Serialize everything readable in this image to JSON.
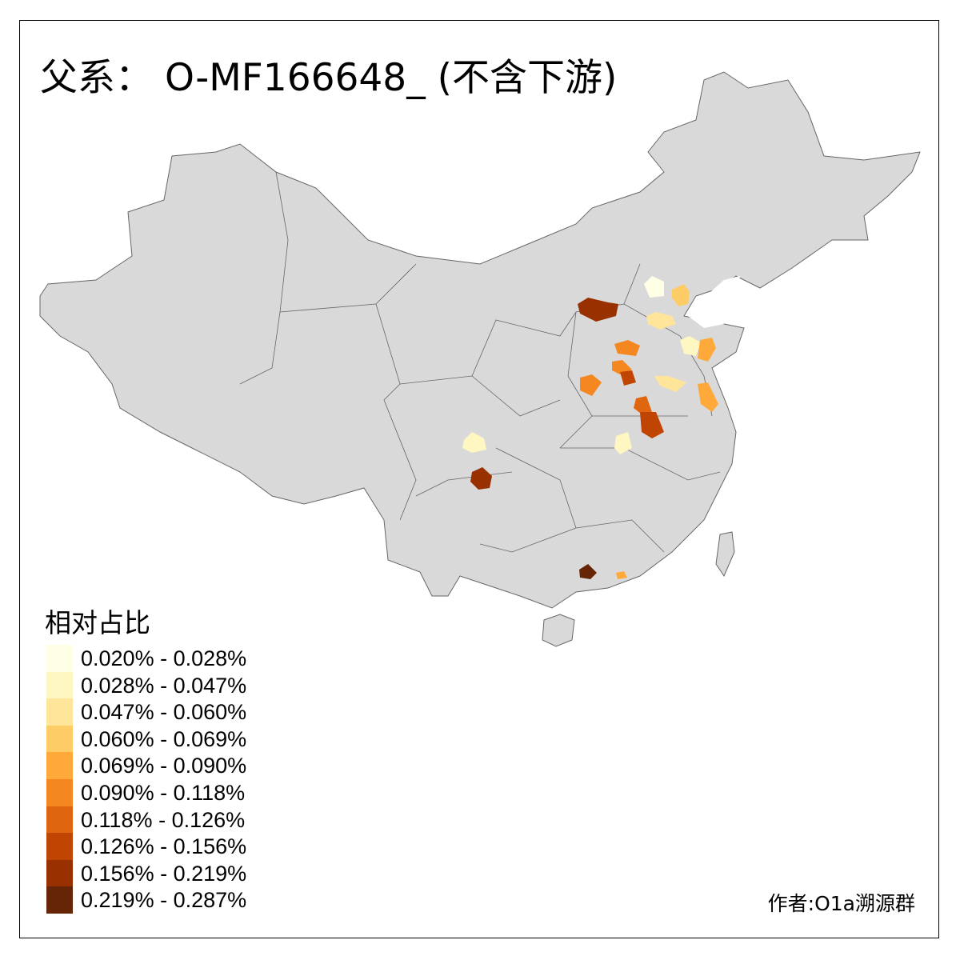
{
  "title": "父系： O-MF166648_ (不含下游)",
  "legend": {
    "title": "相对占比",
    "items": [
      {
        "label": "0.020% - 0.028%",
        "color": "#FFFFE5"
      },
      {
        "label": "0.028% - 0.047%",
        "color": "#FFF7C1"
      },
      {
        "label": "0.047% - 0.060%",
        "color": "#FEE59A"
      },
      {
        "label": "0.060% - 0.069%",
        "color": "#FECC66"
      },
      {
        "label": "0.069% - 0.090%",
        "color": "#FEA93A"
      },
      {
        "label": "0.090% - 0.118%",
        "color": "#F4871F"
      },
      {
        "label": "0.118% - 0.126%",
        "color": "#E0650F"
      },
      {
        "label": "0.126% - 0.156%",
        "color": "#C04502"
      },
      {
        "label": "0.156% - 0.219%",
        "color": "#983000"
      },
      {
        "label": "0.219% - 0.287%",
        "color": "#662506"
      }
    ]
  },
  "author": "作者:O1a溯源群",
  "colors": {
    "base": "#D9D9D9",
    "border": "#666666"
  }
}
